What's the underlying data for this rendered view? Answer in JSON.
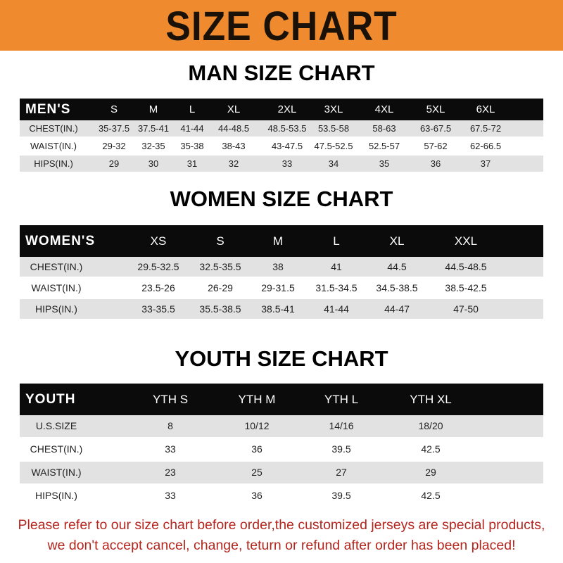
{
  "banner": {
    "title": "SIZE CHART",
    "color": "#ef8a2e"
  },
  "men": {
    "title": "MAN SIZE CHART",
    "header": [
      "MEN'S",
      "S",
      "M",
      "L",
      "XL",
      "2XL",
      "3XL",
      "4XL",
      "5XL",
      "6XL"
    ],
    "rows": [
      [
        "CHEST(IN.)",
        "35-37.5",
        "37.5-41",
        "41-44",
        "44-48.5",
        "48.5-53.5",
        "53.5-58",
        "58-63",
        "63-67.5",
        "67.5-72"
      ],
      [
        "WAIST(IN.)",
        "29-32",
        "32-35",
        "35-38",
        "38-43",
        "43-47.5",
        "47.5-52.5",
        "52.5-57",
        "57-62",
        "62-66.5"
      ],
      [
        "HIPS(IN.)",
        "29",
        "30",
        "31",
        "32",
        "33",
        "34",
        "35",
        "36",
        "37"
      ]
    ]
  },
  "women": {
    "title": "WOMEN SIZE CHART",
    "header": [
      "WOMEN'S",
      "XS",
      "S",
      "M",
      "L",
      "XL",
      "XXL"
    ],
    "rows": [
      [
        "CHEST(IN.)",
        "29.5-32.5",
        "32.5-35.5",
        "38",
        "41",
        "44.5",
        "44.5-48.5"
      ],
      [
        "WAIST(IN.)",
        "23.5-26",
        "26-29",
        "29-31.5",
        "31.5-34.5",
        "34.5-38.5",
        "38.5-42.5"
      ],
      [
        "HIPS(IN.)",
        "33-35.5",
        "35.5-38.5",
        "38.5-41",
        "41-44",
        "44-47",
        "47-50"
      ]
    ]
  },
  "youth": {
    "title": "YOUTH SIZE CHART",
    "header": [
      "YOUTH",
      "YTH S",
      "YTH M",
      "YTH L",
      "YTH XL"
    ],
    "rows": [
      [
        "U.S.SIZE",
        "8",
        "10/12",
        "14/16",
        "18/20"
      ],
      [
        "CHEST(IN.)",
        "33",
        "36",
        "39.5",
        "42.5"
      ],
      [
        "WAIST(IN.)",
        "23",
        "25",
        "27",
        "29"
      ],
      [
        "HIPS(IN.)",
        "33",
        "36",
        "39.5",
        "42.5"
      ]
    ]
  },
  "footer": {
    "line1": "Please refer to our size chart before order,the customized jerseys are special products,",
    "line2": "we don't accept cancel, change, teturn or refund after order has been placed!",
    "color": "#b3261e"
  }
}
